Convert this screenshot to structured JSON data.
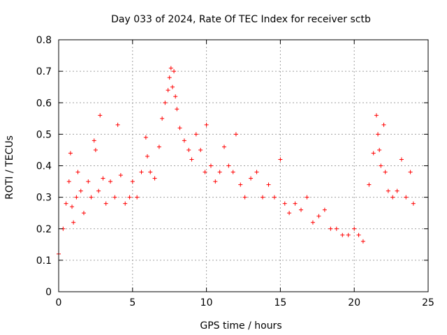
{
  "chart_data": {
    "type": "scatter",
    "title": "Day 033 of 2024, Rate Of TEC Index for receiver sctb",
    "xlabel": "GPS time / hours",
    "ylabel": "ROTI / TECUs",
    "xlim": [
      0,
      25
    ],
    "ylim": [
      0,
      0.8
    ],
    "xticks": [
      0,
      5,
      10,
      15,
      20,
      25
    ],
    "yticks": [
      0,
      0.1,
      0.2,
      0.3,
      0.4,
      0.5,
      0.6,
      0.7,
      0.8
    ],
    "xtick_labels": [
      "0",
      "5",
      "10",
      "15",
      "20",
      "25"
    ],
    "ytick_labels": [
      "0",
      "0.1",
      "0.2",
      "0.3",
      "0.4",
      "0.5",
      "0.6",
      "0.7",
      "0.8"
    ],
    "grid": true,
    "marker": "plus",
    "color": "#ff0000",
    "series": [
      {
        "x": [
          0.0,
          0.3,
          0.5,
          0.7,
          0.8,
          0.9,
          1.0,
          1.2,
          1.3,
          1.5,
          1.7,
          2.0,
          2.2,
          2.4,
          2.5,
          2.7,
          2.8,
          3.0,
          3.2,
          3.5,
          3.8,
          4.0,
          4.2,
          4.5,
          4.8,
          5.0,
          5.3,
          5.6,
          5.9,
          6.0,
          6.2,
          6.5,
          6.8,
          7.0,
          7.2,
          7.4,
          7.5,
          7.6,
          7.7,
          7.8,
          7.9,
          8.0,
          8.2,
          8.5,
          8.8,
          9.0,
          9.3,
          9.6,
          9.9,
          10.0,
          10.3,
          10.6,
          10.9,
          11.2,
          11.5,
          11.8,
          12.0,
          12.3,
          12.6,
          13.0,
          13.4,
          13.8,
          14.2,
          14.6,
          15.0,
          15.3,
          15.6,
          16.0,
          16.4,
          16.8,
          17.2,
          17.6,
          18.0,
          18.4,
          18.8,
          19.2,
          19.6,
          20.0,
          20.3,
          20.6,
          21.0,
          21.3,
          21.5,
          21.6,
          21.7,
          21.8,
          22.0,
          22.1,
          22.3,
          22.6,
          22.9,
          23.2,
          23.5,
          23.8,
          24.0
        ],
        "y": [
          0.12,
          0.2,
          0.28,
          0.35,
          0.44,
          0.27,
          0.22,
          0.3,
          0.38,
          0.32,
          0.25,
          0.35,
          0.3,
          0.48,
          0.45,
          0.32,
          0.56,
          0.36,
          0.28,
          0.35,
          0.3,
          0.53,
          0.37,
          0.28,
          0.3,
          0.35,
          0.3,
          0.38,
          0.49,
          0.43,
          0.38,
          0.36,
          0.46,
          0.55,
          0.6,
          0.64,
          0.68,
          0.71,
          0.65,
          0.7,
          0.62,
          0.58,
          0.52,
          0.48,
          0.45,
          0.42,
          0.5,
          0.45,
          0.38,
          0.53,
          0.4,
          0.35,
          0.38,
          0.46,
          0.4,
          0.38,
          0.5,
          0.34,
          0.3,
          0.36,
          0.38,
          0.3,
          0.34,
          0.3,
          0.42,
          0.28,
          0.25,
          0.28,
          0.26,
          0.3,
          0.22,
          0.24,
          0.26,
          0.2,
          0.2,
          0.18,
          0.18,
          0.2,
          0.18,
          0.16,
          0.34,
          0.44,
          0.56,
          0.5,
          0.45,
          0.4,
          0.53,
          0.38,
          0.32,
          0.3,
          0.32,
          0.42,
          0.3,
          0.38,
          0.28
        ]
      }
    ]
  }
}
